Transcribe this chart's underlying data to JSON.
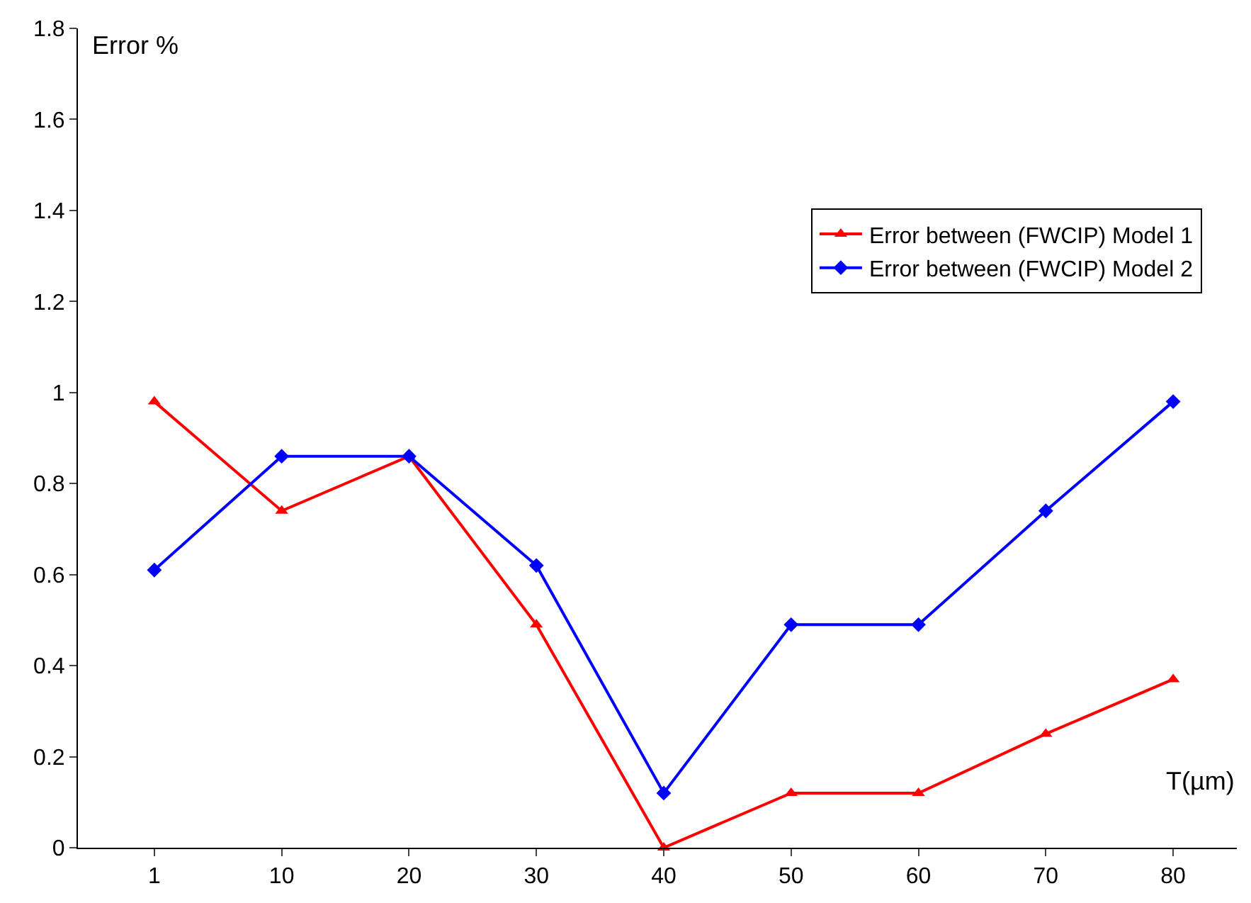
{
  "chart_data": {
    "type": "line",
    "xlabel": "T(µm)",
    "ylabel": "Error %",
    "categories": [
      "1",
      "10",
      "20",
      "30",
      "40",
      "50",
      "60",
      "70",
      "80"
    ],
    "series": [
      {
        "name": "Error between (FWCIP) Model 1",
        "color": "#ff0000",
        "marker": "triangle",
        "values": [
          0.98,
          0.74,
          0.86,
          0.49,
          0,
          0.12,
          0.12,
          0.25,
          0.37
        ]
      },
      {
        "name": "Error between (FWCIP) Model 2",
        "color": "#0000ff",
        "marker": "diamond",
        "values": [
          0.61,
          0.86,
          0.86,
          0.62,
          0.12,
          0.49,
          0.49,
          0.74,
          0.98
        ]
      }
    ],
    "ylim": [
      0,
      1.8
    ],
    "yticks": [
      0,
      0.2,
      0.4,
      0.6,
      0.8,
      1,
      1.2,
      1.4,
      1.6,
      1.8
    ],
    "legend": "top right",
    "line_style": "solid"
  }
}
